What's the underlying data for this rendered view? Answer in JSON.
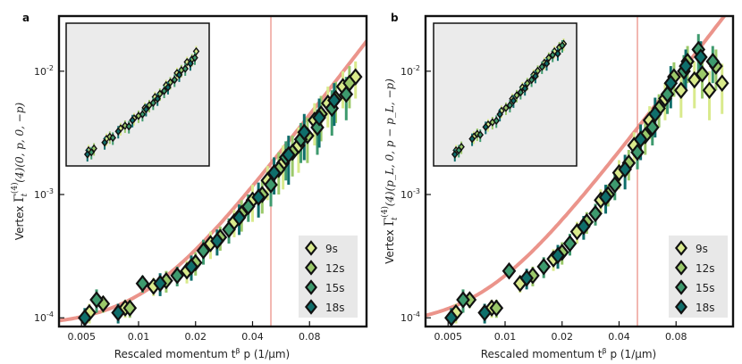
{
  "colors": {
    "series": [
      "#d9ea8c",
      "#9bc96a",
      "#3e9a6e",
      "#0f6e6b"
    ],
    "fit_curve": "#e9887e",
    "vline": "#e9887e",
    "legend_bg": "#e8e8e8",
    "inset_bg": "#ebebeb",
    "marker_edge": "#111111"
  },
  "chart_data": [
    {
      "type": "scatter",
      "panel_label": "a",
      "xlabel": "Rescaled momentum t^β p (1/μm)",
      "ylabel_prefix": "Vertex ",
      "ylabel_math": "Γ_t^(4)(0, p, 0, −p)",
      "x_scale": "log",
      "y_scale": "log",
      "xlim": [
        0.0038,
        0.16
      ],
      "ylim": [
        8.5e-05,
        0.028
      ],
      "x_ticks": [
        0.005,
        0.01,
        0.02,
        0.04,
        0.08
      ],
      "x_tick_labels": [
        "0.005",
        "0.01",
        "0.02",
        "0.04",
        "0.08"
      ],
      "y_ticks": [
        0.0001,
        0.001,
        0.01
      ],
      "y_tick_labels": [
        "10^-4",
        "10^-3",
        "10^-2"
      ],
      "vline_x": 0.05,
      "fit_curve": {
        "form": "y0 + A*x^2",
        "y0": 8.5e-05,
        "A": 0.68
      },
      "legend": {
        "position": "bottom-right",
        "entries": [
          "9s",
          "12s",
          "15s",
          "18s"
        ]
      },
      "series": [
        {
          "name": "9s",
          "x": [
            0.0055,
            0.0085,
            0.012,
            0.018,
            0.024,
            0.032,
            0.04,
            0.048,
            0.058,
            0.07,
            0.085,
            0.1,
            0.12,
            0.14
          ],
          "y": [
            0.00011,
            0.00012,
            0.00018,
            0.00024,
            0.0004,
            0.0006,
            0.0009,
            0.0013,
            0.0018,
            0.0025,
            0.004,
            0.0055,
            0.0075,
            0.009
          ],
          "err": [
            2e-05,
            2e-05,
            3e-05,
            5e-05,
            0.0001,
            0.00015,
            0.0003,
            0.0004,
            0.0007,
            0.001,
            0.0015,
            0.002,
            0.0025,
            0.003
          ]
        },
        {
          "name": "12s",
          "x": [
            0.0065,
            0.009,
            0.014,
            0.02,
            0.027,
            0.035,
            0.045,
            0.055,
            0.065,
            0.078,
            0.092,
            0.11,
            0.13
          ],
          "y": [
            0.00013,
            0.00012,
            0.0002,
            0.00028,
            0.00045,
            0.0007,
            0.001,
            0.0016,
            0.0022,
            0.003,
            0.0045,
            0.006,
            0.008
          ],
          "err": [
            2e-05,
            2e-05,
            4e-05,
            6e-05,
            0.0001,
            0.0002,
            0.0003,
            0.0006,
            0.0008,
            0.0012,
            0.0018,
            0.0022,
            0.003
          ]
        },
        {
          "name": "15s",
          "x": [
            0.006,
            0.0105,
            0.016,
            0.022,
            0.03,
            0.038,
            0.05,
            0.06,
            0.072,
            0.088,
            0.105,
            0.125
          ],
          "y": [
            0.00014,
            0.00019,
            0.00022,
            0.00035,
            0.00052,
            0.0008,
            0.0012,
            0.002,
            0.0028,
            0.0035,
            0.005,
            0.0065
          ],
          "err": [
            3e-05,
            3e-05,
            4e-05,
            8e-05,
            0.00012,
            0.0002,
            0.0004,
            0.0007,
            0.001,
            0.0014,
            0.002,
            0.0025
          ]
        },
        {
          "name": "18s",
          "x": [
            0.0052,
            0.0078,
            0.013,
            0.019,
            0.026,
            0.034,
            0.043,
            0.052,
            0.062,
            0.075,
            0.09,
            0.108
          ],
          "y": [
            0.0001,
            0.00011,
            0.00019,
            0.00026,
            0.00042,
            0.00065,
            0.00095,
            0.0015,
            0.0021,
            0.0032,
            0.0042,
            0.0058
          ],
          "err": [
            2e-05,
            2e-05,
            4e-05,
            6e-05,
            0.0001,
            0.00018,
            0.0003,
            0.0005,
            0.0009,
            0.0013,
            0.0018,
            0.0022
          ]
        }
      ],
      "inset": {
        "x_scale": "log",
        "y_scale": "log",
        "xlim": [
          0.0035,
          0.17
        ],
        "ylim": [
          7e-05,
          0.03
        ],
        "series": [
          {
            "name": "9s",
            "x": [
              0.006,
              0.01,
              0.015,
              0.022,
              0.03,
              0.04,
              0.055,
              0.075,
              0.1,
              0.13
            ],
            "y": [
              0.00012,
              0.0002,
              0.00032,
              0.0005,
              0.0008,
              0.0013,
              0.0022,
              0.0038,
              0.0062,
              0.01
            ]
          },
          {
            "name": "12s",
            "x": [
              0.007,
              0.011,
              0.017,
              0.025,
              0.034,
              0.046,
              0.062,
              0.085,
              0.115
            ],
            "y": [
              0.00013,
              0.00022,
              0.00036,
              0.00056,
              0.0009,
              0.0015,
              0.0025,
              0.0043,
              0.007
            ]
          },
          {
            "name": "15s",
            "x": [
              0.0065,
              0.012,
              0.019,
              0.028,
              0.038,
              0.052,
              0.07,
              0.095,
              0.125
            ],
            "y": [
              0.00011,
              0.00021,
              0.00035,
              0.0006,
              0.001,
              0.0017,
              0.0028,
              0.0046,
              0.0075
            ]
          },
          {
            "name": "18s",
            "x": [
              0.0058,
              0.0095,
              0.014,
              0.021,
              0.031,
              0.043,
              0.058,
              0.08,
              0.11
            ],
            "y": [
              0.0001,
              0.00017,
              0.00028,
              0.00046,
              0.00075,
              0.0012,
              0.002,
              0.0035,
              0.0058
            ]
          }
        ]
      }
    },
    {
      "type": "scatter",
      "panel_label": "b",
      "xlabel": "Rescaled momentum t^β p (1/μm)",
      "ylabel_prefix": "Vertex ",
      "ylabel_math": "Γ_t^(4)(p_L, 0, p − p_L, −p)",
      "x_scale": "log",
      "y_scale": "log",
      "xlim": [
        0.0038,
        0.16
      ],
      "ylim": [
        8.5e-05,
        0.028
      ],
      "x_ticks": [
        0.005,
        0.01,
        0.02,
        0.04,
        0.08
      ],
      "x_tick_labels": [
        "0.005",
        "0.01",
        "0.02",
        "0.04",
        "0.08"
      ],
      "y_ticks": [
        0.0001,
        0.001,
        0.01
      ],
      "y_tick_labels": [
        "10^-4",
        "10^-3",
        "10^-2"
      ],
      "vline_x": 0.05,
      "fit_curve": {
        "form": "y0 + A*x^2",
        "y0": 8.5e-05,
        "A": 1.35
      },
      "legend": {
        "position": "bottom-right",
        "entries": [
          "9s",
          "12s",
          "15s",
          "18s"
        ]
      },
      "series": [
        {
          "name": "9s",
          "x": [
            0.0055,
            0.0085,
            0.012,
            0.018,
            0.024,
            0.032,
            0.04,
            0.048,
            0.058,
            0.07,
            0.085,
            0.1,
            0.12,
            0.14
          ],
          "y": [
            0.00011,
            0.00012,
            0.00019,
            0.0003,
            0.0005,
            0.0009,
            0.0015,
            0.0025,
            0.004,
            0.006,
            0.007,
            0.0085,
            0.007,
            0.008
          ],
          "err": [
            2e-05,
            2e-05,
            3e-05,
            6e-05,
            0.0001,
            0.0002,
            0.0004,
            0.0007,
            0.0012,
            0.002,
            0.0028,
            0.0035,
            0.003,
            0.0035
          ]
        },
        {
          "name": "12s",
          "x": [
            0.0065,
            0.009,
            0.014,
            0.02,
            0.027,
            0.035,
            0.045,
            0.055,
            0.065,
            0.078,
            0.092,
            0.11,
            0.13
          ],
          "y": [
            0.00014,
            0.00012,
            0.00022,
            0.00034,
            0.0006,
            0.001,
            0.0018,
            0.003,
            0.005,
            0.009,
            0.012,
            0.0095,
            0.011
          ],
          "err": [
            2e-05,
            2e-05,
            4e-05,
            7e-05,
            0.00012,
            0.0002,
            0.0005,
            0.0009,
            0.0015,
            0.0028,
            0.004,
            0.0035,
            0.004
          ]
        },
        {
          "name": "15s",
          "x": [
            0.006,
            0.0105,
            0.016,
            0.022,
            0.03,
            0.038,
            0.05,
            0.06,
            0.072,
            0.088,
            0.105,
            0.125
          ],
          "y": [
            0.00014,
            0.00024,
            0.00026,
            0.0004,
            0.0007,
            0.0012,
            0.0022,
            0.0035,
            0.0065,
            0.01,
            0.015,
            0.012
          ],
          "err": [
            3e-05,
            3e-05,
            5e-05,
            8e-05,
            0.00014,
            0.0003,
            0.0006,
            0.001,
            0.002,
            0.0035,
            0.005,
            0.004
          ]
        },
        {
          "name": "18s",
          "x": [
            0.0052,
            0.0078,
            0.013,
            0.019,
            0.026,
            0.034,
            0.043,
            0.052,
            0.062,
            0.075,
            0.09,
            0.108
          ],
          "y": [
            0.0001,
            0.00011,
            0.00021,
            0.00032,
            0.00055,
            0.00095,
            0.0016,
            0.0028,
            0.0045,
            0.008,
            0.011,
            0.013
          ],
          "err": [
            2e-05,
            2e-05,
            4e-05,
            7e-05,
            0.00012,
            0.00025,
            0.0005,
            0.0009,
            0.0016,
            0.003,
            0.004,
            0.0045
          ]
        }
      ],
      "inset": {
        "x_scale": "log",
        "y_scale": "log",
        "xlim": [
          0.0035,
          0.17
        ],
        "ylim": [
          7e-05,
          0.03
        ],
        "series": [
          {
            "name": "9s",
            "x": [
              0.006,
              0.01,
              0.015,
              0.022,
              0.03,
              0.04,
              0.055,
              0.075,
              0.1,
              0.13
            ],
            "y": [
              0.00012,
              0.00022,
              0.00038,
              0.0007,
              0.0012,
              0.002,
              0.0035,
              0.006,
              0.01,
              0.014
            ]
          },
          {
            "name": "12s",
            "x": [
              0.007,
              0.011,
              0.017,
              0.025,
              0.034,
              0.046,
              0.062,
              0.085,
              0.115
            ],
            "y": [
              0.00014,
              0.00025,
              0.00042,
              0.0008,
              0.0014,
              0.0024,
              0.0042,
              0.0075,
              0.012
            ]
          },
          {
            "name": "15s",
            "x": [
              0.0065,
              0.012,
              0.019,
              0.028,
              0.038,
              0.052,
              0.07,
              0.095,
              0.125
            ],
            "y": [
              0.00012,
              0.00024,
              0.00045,
              0.0009,
              0.0016,
              0.0028,
              0.005,
              0.0085,
              0.013
            ]
          },
          {
            "name": "18s",
            "x": [
              0.0058,
              0.0095,
              0.014,
              0.021,
              0.031,
              0.043,
              0.058,
              0.08,
              0.11
            ],
            "y": [
              0.0001,
              0.0002,
              0.00034,
              0.0006,
              0.0011,
              0.0019,
              0.0033,
              0.0058,
              0.009
            ]
          }
        ]
      }
    }
  ]
}
